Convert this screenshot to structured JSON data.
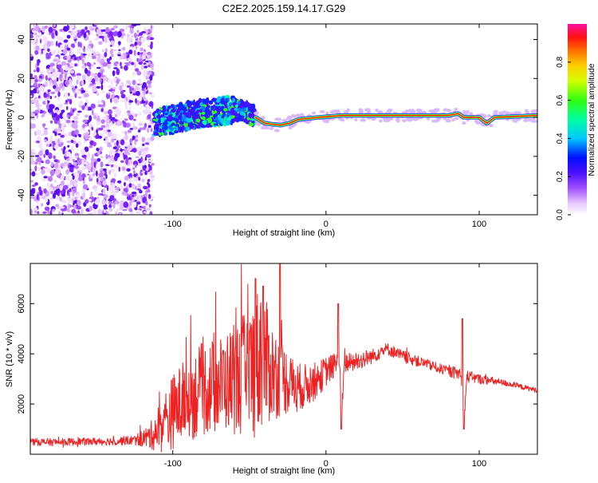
{
  "chart_data": [
    {
      "type": "heatmap",
      "title": "C2E2.2025.159.14.17.G29",
      "xlabel": "Height of straight line (km)",
      "ylabel": "Frequency (Hz)",
      "xlim": [
        -193,
        138
      ],
      "ylim": [
        -50,
        48
      ],
      "x_ticks": [
        -100,
        0,
        100
      ],
      "y_ticks": [
        -40,
        -20,
        0,
        20,
        40
      ],
      "grid": false,
      "colorbar": {
        "label": "Normalized spectral amplitude",
        "range": [
          0.0,
          1.0
        ],
        "ticks": [
          0.0,
          0.2,
          0.4,
          0.6,
          0.8
        ]
      },
      "features": {
        "noise_region_x": [
          -193,
          -113
        ],
        "signal_track": [
          {
            "x": -112,
            "f": -3
          },
          {
            "x": -100,
            "f": -1
          },
          {
            "x": -90,
            "f": 1
          },
          {
            "x": -80,
            "f": 2
          },
          {
            "x": -70,
            "f": 3
          },
          {
            "x": -60,
            "f": 4
          },
          {
            "x": -52,
            "f": 3
          },
          {
            "x": -46,
            "f": 0
          },
          {
            "x": -40,
            "f": -3
          },
          {
            "x": -30,
            "f": -4
          },
          {
            "x": -24,
            "f": -3
          },
          {
            "x": -18,
            "f": -1
          },
          {
            "x": -5,
            "f": 0
          },
          {
            "x": 10,
            "f": 1
          },
          {
            "x": 40,
            "f": 1
          },
          {
            "x": 80,
            "f": 1
          },
          {
            "x": 86,
            "f": 2
          },
          {
            "x": 90,
            "f": 0
          },
          {
            "x": 100,
            "f": 0
          },
          {
            "x": 105,
            "f": -3
          },
          {
            "x": 110,
            "f": 0
          },
          {
            "x": 138,
            "f": 1
          }
        ]
      }
    },
    {
      "type": "line",
      "title": "",
      "xlabel": "Height of straight line (km)",
      "ylabel": "SNR (10 * v/v)",
      "xlim": [
        -193,
        138
      ],
      "ylim": [
        0,
        7600
      ],
      "x_ticks": [
        -100,
        0,
        100
      ],
      "y_ticks": [
        2000,
        4000,
        6000
      ],
      "grid": false,
      "series": [
        {
          "color": "#ee2222",
          "x": [
            -193,
            -180,
            -160,
            -140,
            -125,
            -115,
            -110,
            -105,
            -100,
            -95,
            -90,
            -85,
            -80,
            -75,
            -70,
            -65,
            -60,
            -55,
            -50,
            -45,
            -42,
            -40,
            -35,
            -30,
            -25,
            -20,
            -15,
            -10,
            -5,
            0,
            5,
            9,
            10,
            12,
            20,
            30,
            40,
            50,
            60,
            70,
            80,
            88,
            90,
            92,
            100,
            110,
            120,
            130,
            138
          ],
          "values": [
            500,
            480,
            500,
            520,
            560,
            700,
            1000,
            1300,
            1700,
            2000,
            2200,
            2400,
            2600,
            2700,
            2800,
            2900,
            3000,
            3100,
            3300,
            3600,
            4200,
            3700,
            3300,
            3100,
            2900,
            2700,
            2700,
            2800,
            3000,
            3300,
            3500,
            3700,
            1200,
            3600,
            3700,
            3900,
            4200,
            3900,
            3700,
            3500,
            3300,
            3200,
            1200,
            3100,
            3000,
            2900,
            2800,
            2650,
            2550
          ],
          "noise_amp": [
            150,
            150,
            150,
            160,
            200,
            500,
            900,
            1300,
            1500,
            1600,
            1700,
            1800,
            1900,
            1900,
            1900,
            2000,
            2200,
            2400,
            2600,
            3000,
            3200,
            2600,
            2000,
            1600,
            1300,
            1000,
            900,
            800,
            700,
            600,
            500,
            400,
            300,
            400,
            400,
            300,
            250,
            250,
            220,
            200,
            200,
            300,
            300,
            250,
            200,
            150,
            120,
            100,
            100
          ],
          "spikes": [
            {
              "x": -46,
              "y": 7000
            },
            {
              "x": -41,
              "y": 6700
            },
            {
              "x": -30,
              "y": 7600
            },
            {
              "x": 8,
              "y": 6000
            },
            {
              "x": 10,
              "y": 1000
            },
            {
              "x": 89,
              "y": 5400
            },
            {
              "x": 90,
              "y": 1000
            }
          ]
        }
      ]
    }
  ]
}
